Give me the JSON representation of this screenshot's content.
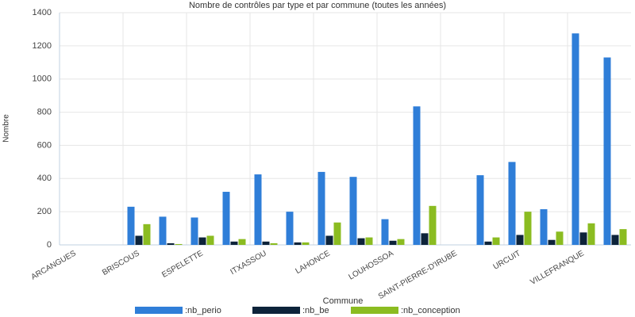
{
  "chart_data": {
    "type": "bar",
    "title": "Nombre de contrôles par type et par commune (toutes les années)",
    "x_label": "Commune",
    "y_label": "Nombre",
    "categories": [
      "ARCANGUES",
      null,
      "BRISCOUS",
      null,
      "ESPELETTE",
      null,
      "ITXASSOU",
      null,
      "LAHONCE",
      null,
      "LOUHOSSOA",
      null,
      "SAINT-PIERRE-D'IRUBE",
      null,
      "URCUIT",
      null,
      "VILLEFRANQUE",
      null
    ],
    "series": [
      {
        "name": ":nb_perio",
        "color": "#2f7ed8",
        "values": [
          0,
          0,
          230,
          170,
          165,
          320,
          425,
          200,
          440,
          410,
          155,
          835,
          0,
          420,
          500,
          215,
          1275,
          1130
        ]
      },
      {
        "name": ":nb_be",
        "color": "#0d233a",
        "values": [
          0,
          0,
          55,
          10,
          45,
          20,
          20,
          15,
          55,
          40,
          25,
          70,
          0,
          20,
          60,
          30,
          75,
          60
        ]
      },
      {
        "name": ":nb_conception",
        "color": "#8bbc21",
        "values": [
          0,
          0,
          125,
          5,
          55,
          35,
          10,
          15,
          135,
          45,
          35,
          235,
          0,
          45,
          200,
          80,
          130,
          95
        ]
      }
    ],
    "ylim": [
      0,
      1400
    ],
    "yticks": [
      0,
      200,
      400,
      600,
      800,
      1000,
      1200,
      1400
    ],
    "grid": true
  }
}
